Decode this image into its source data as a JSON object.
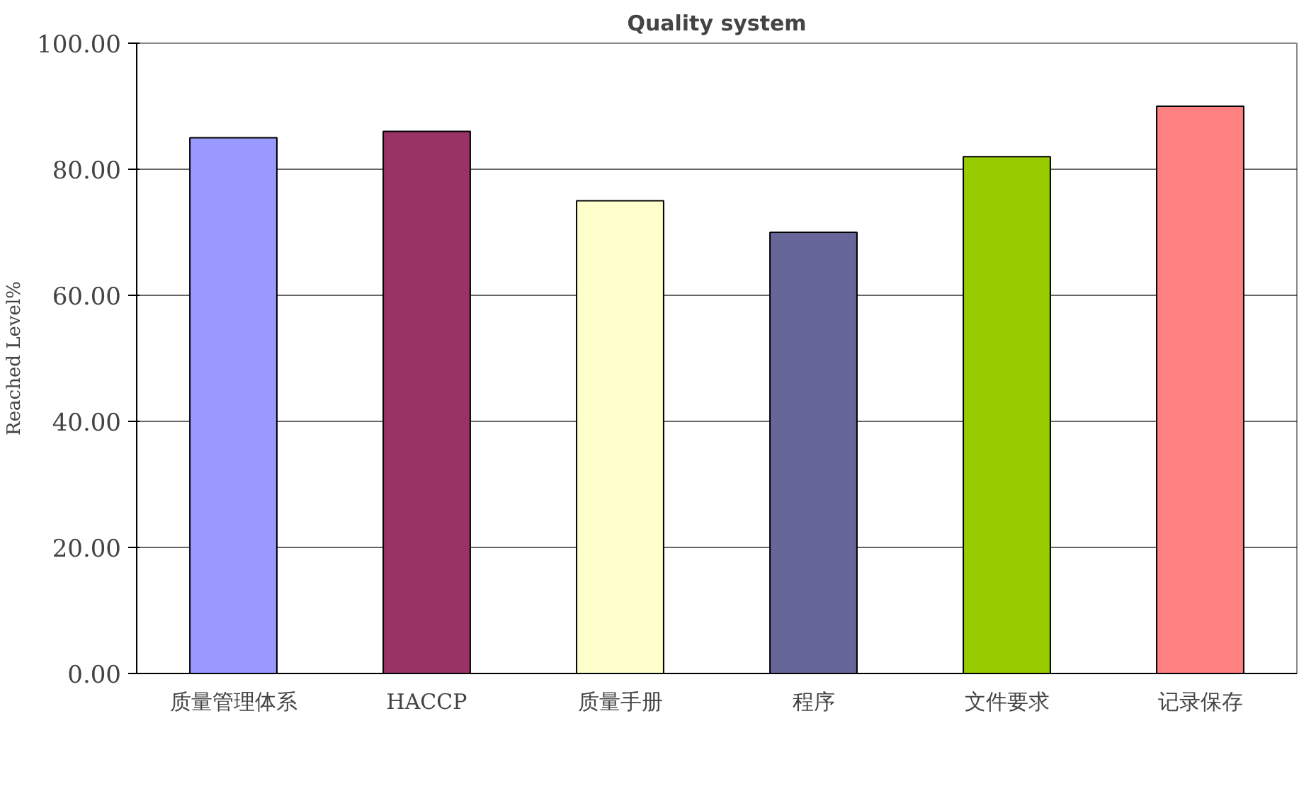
{
  "chart_data": {
    "type": "bar",
    "title": "Quality system",
    "ylabel": "Reached Level%",
    "categories": [
      "质量管理体系",
      "HACCP",
      "质量手册",
      "程序",
      "文件要求",
      "记录保存"
    ],
    "values": [
      85,
      86,
      75,
      70,
      82,
      90
    ],
    "colors": [
      "#9999ff",
      "#993366",
      "#ffffcc",
      "#666699",
      "#99cc00",
      "#ff8080"
    ],
    "ylim": [
      0,
      100
    ],
    "yticks": [
      {
        "value": 0,
        "label": "0.00"
      },
      {
        "value": 20,
        "label": "20.00"
      },
      {
        "value": 40,
        "label": "40.00"
      },
      {
        "value": 60,
        "label": "60.00"
      },
      {
        "value": 80,
        "label": "80.00"
      },
      {
        "value": 100,
        "label": "100.00"
      }
    ],
    "grid": "y"
  }
}
